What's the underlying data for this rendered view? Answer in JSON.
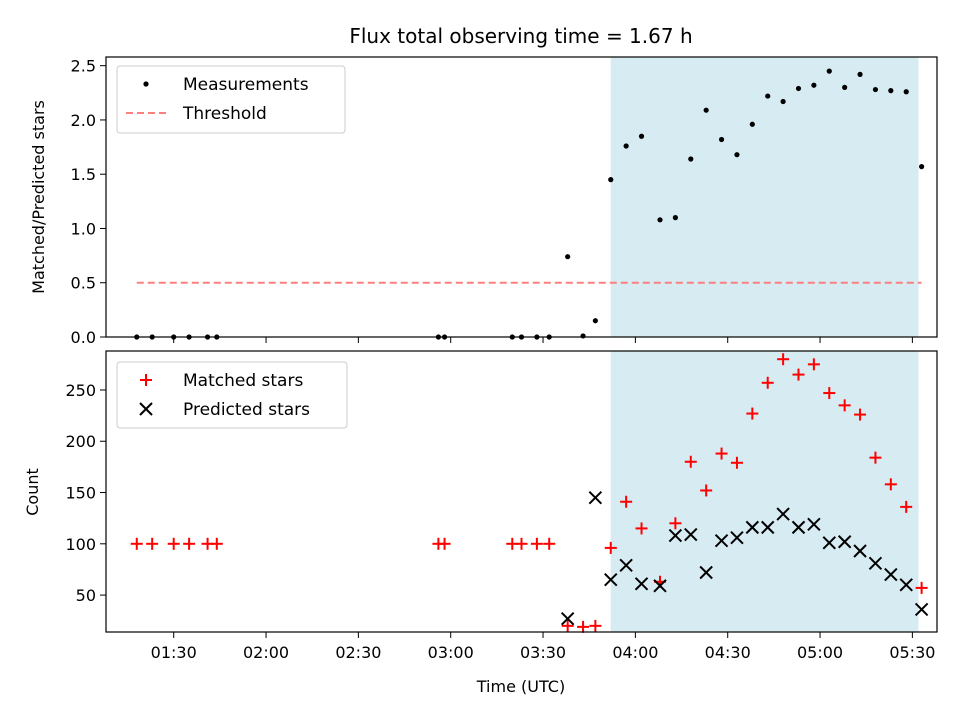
{
  "chart_data": [
    {
      "type": "scatter",
      "title": "Flux total observing time = 1.67 h",
      "xlabel": "",
      "ylabel": "Matched/Predicted stars",
      "xlim": [
        "01:08",
        "05:38"
      ],
      "ylim": [
        0,
        2.58
      ],
      "yticks": [
        "0.0",
        "0.5",
        "1.0",
        "1.5",
        "2.0",
        "2.5"
      ],
      "shaded_span": {
        "from": "03:52",
        "to": "05:32",
        "color": "#add8e6"
      },
      "legend_position": "upper left",
      "series": [
        {
          "name": "Measurements",
          "marker": "dot",
          "color": "#000000",
          "x": [
            "01:18",
            "01:23",
            "01:30",
            "01:35",
            "01:41",
            "01:44",
            "02:56",
            "02:58",
            "03:20",
            "03:23",
            "03:28",
            "03:32",
            "03:38",
            "03:43",
            "03:47",
            "03:52",
            "03:57",
            "04:02",
            "04:08",
            "04:13",
            "04:18",
            "04:23",
            "04:28",
            "04:33",
            "04:38",
            "04:43",
            "04:48",
            "04:53",
            "04:58",
            "05:03",
            "05:08",
            "05:13",
            "05:18",
            "05:23",
            "05:28",
            "05:33"
          ],
          "y": [
            0.0,
            0.0,
            0.0,
            0.0,
            0.0,
            0.0,
            0.0,
            0.0,
            0.0,
            0.0,
            0.0,
            0.0,
            0.74,
            0.01,
            0.15,
            1.45,
            1.76,
            1.85,
            1.08,
            1.1,
            1.64,
            2.09,
            1.82,
            1.68,
            1.96,
            2.22,
            2.17,
            2.29,
            2.32,
            2.45,
            2.3,
            2.42,
            2.28,
            2.27,
            2.26,
            1.57
          ]
        },
        {
          "name": "Threshold",
          "line_style": "dashed",
          "color": "#ff7f7f",
          "x": [
            "01:18",
            "05:33"
          ],
          "y": [
            0.5,
            0.5
          ]
        }
      ]
    },
    {
      "type": "scatter",
      "title": "",
      "xlabel": "Time (UTC)",
      "ylabel": "Count",
      "xlim": [
        "01:08",
        "05:38"
      ],
      "ylim": [
        14,
        288
      ],
      "yticks": [
        "50",
        "100",
        "150",
        "200",
        "250"
      ],
      "xticks": [
        "01:30",
        "02:00",
        "02:30",
        "03:00",
        "03:30",
        "04:00",
        "04:30",
        "05:00",
        "05:30"
      ],
      "shaded_span": {
        "from": "03:52",
        "to": "05:32",
        "color": "#add8e6"
      },
      "legend_position": "upper left",
      "series": [
        {
          "name": "Matched stars",
          "marker": "plus",
          "color": "#ff0000",
          "x": [
            "01:18",
            "01:23",
            "01:30",
            "01:35",
            "01:41",
            "01:44",
            "02:56",
            "02:58",
            "03:20",
            "03:23",
            "03:28",
            "03:32",
            "03:38",
            "03:43",
            "03:47",
            "03:52",
            "03:57",
            "04:02",
            "04:08",
            "04:13",
            "04:18",
            "04:23",
            "04:28",
            "04:33",
            "04:38",
            "04:43",
            "04:48",
            "04:53",
            "04:58",
            "05:03",
            "05:08",
            "05:13",
            "05:18",
            "05:23",
            "05:28",
            "05:33"
          ],
          "y": [
            100,
            100,
            100,
            100,
            100,
            100,
            100,
            100,
            100,
            100,
            100,
            100,
            20,
            19,
            20,
            96,
            141,
            115,
            63,
            120,
            180,
            152,
            188,
            179,
            227,
            257,
            280,
            265,
            275,
            247,
            235,
            226,
            184,
            158,
            136,
            57
          ]
        },
        {
          "name": "Predicted stars",
          "marker": "x",
          "color": "#000000",
          "x": [
            "03:38",
            "03:47",
            "03:52",
            "03:57",
            "04:02",
            "04:08",
            "04:13",
            "04:18",
            "04:23",
            "04:28",
            "04:33",
            "04:38",
            "04:43",
            "04:48",
            "04:53",
            "04:58",
            "05:03",
            "05:08",
            "05:13",
            "05:18",
            "05:23",
            "05:28",
            "05:33"
          ],
          "y": [
            27,
            145,
            65,
            79,
            61,
            59,
            108,
            109,
            72,
            103,
            106,
            116,
            116,
            129,
            116,
            119,
            101,
            102,
            93,
            81,
            70,
            60,
            36
          ]
        }
      ]
    }
  ]
}
